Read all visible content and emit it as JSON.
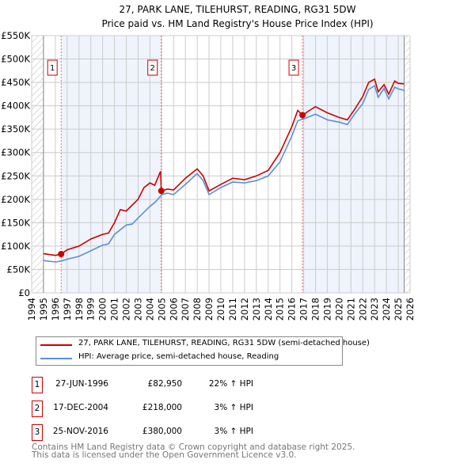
{
  "chart_data": {
    "type": "line",
    "title": "27, PARK LANE, TILEHURST, READING, RG31 5DW",
    "subtitle": "Price paid vs. HM Land Registry's House Price Index (HPI)",
    "xlim": [
      1994,
      2026
    ],
    "ylim": [
      0,
      550000
    ],
    "x_ticks": [
      "1994",
      "1995",
      "1996",
      "1997",
      "1998",
      "1999",
      "2000",
      "2001",
      "2002",
      "2003",
      "2004",
      "2005",
      "2006",
      "2007",
      "2008",
      "2009",
      "2010",
      "2011",
      "2012",
      "2013",
      "2014",
      "2015",
      "2016",
      "2017",
      "2018",
      "2019",
      "2020",
      "2021",
      "2022",
      "2023",
      "2024",
      "2025",
      "2026"
    ],
    "y_ticks": [
      "£0",
      "£50K",
      "£100K",
      "£150K",
      "£200K",
      "£250K",
      "£300K",
      "£350K",
      "£400K",
      "£450K",
      "£500K",
      "£550K"
    ],
    "grid": true,
    "series": [
      {
        "name": "27, PARK LANE, TILEHURST, READING, RG31 5DW (semi-detached house)",
        "color": "#cc0000",
        "x": [
          1995,
          1996,
          1996.49,
          1997,
          1998,
          1999,
          2000,
          2000.5,
          2001,
          2001.5,
          2002,
          2003,
          2003.5,
          2004,
          2004.4,
          2004.9,
          2004.96,
          2005.5,
          2006,
          2007,
          2008,
          2008.5,
          2009,
          2010,
          2011,
          2012,
          2013,
          2014,
          2015,
          2016,
          2016.5,
          2016.9,
          2017.5,
          2018,
          2019,
          2020,
          2020.7,
          2021.3,
          2022,
          2022.5,
          2023,
          2023.3,
          2023.8,
          2024.2,
          2024.7,
          2025,
          2025.5
        ],
        "y": [
          84000,
          80000,
          82950,
          92000,
          100000,
          115000,
          125000,
          128000,
          150000,
          178000,
          175000,
          200000,
          225000,
          235000,
          230000,
          260000,
          218000,
          222000,
          220000,
          245000,
          265000,
          250000,
          218000,
          232000,
          245000,
          242000,
          250000,
          262000,
          300000,
          355000,
          390000,
          380000,
          390000,
          398000,
          385000,
          375000,
          370000,
          392000,
          420000,
          450000,
          457000,
          430000,
          445000,
          425000,
          453000,
          448000,
          447000
        ]
      },
      {
        "name": "HPI: Average price, semi-detached house, Reading",
        "color": "#5b8fd4",
        "x": [
          1995,
          1996,
          1996.5,
          1997,
          1998,
          1999,
          2000,
          2000.5,
          2001,
          2002,
          2002.5,
          2003,
          2004,
          2004.5,
          2005,
          2005.5,
          2006,
          2007,
          2008,
          2008.5,
          2009,
          2010,
          2011,
          2012,
          2013,
          2014,
          2015,
          2016,
          2016.5,
          2017,
          2018,
          2019,
          2020,
          2020.7,
          2021.3,
          2022,
          2022.5,
          2023,
          2023.3,
          2023.8,
          2024.2,
          2024.7,
          2025,
          2025.5
        ],
        "y": [
          69000,
          66000,
          68000,
          72000,
          78000,
          90000,
          102000,
          105000,
          125000,
          145000,
          147000,
          160000,
          185000,
          195000,
          210000,
          213000,
          210000,
          232000,
          255000,
          240000,
          210000,
          225000,
          237000,
          235000,
          240000,
          250000,
          280000,
          335000,
          368000,
          372000,
          382000,
          370000,
          365000,
          360000,
          382000,
          405000,
          435000,
          443000,
          418000,
          437000,
          415000,
          440000,
          436000,
          433000
        ]
      }
    ],
    "sales": [
      {
        "label": "1",
        "x": 1996.49,
        "price": 82950,
        "date": "27-JUN-1996",
        "price_text": "£82,950",
        "hpi": "22% ↑ HPI"
      },
      {
        "label": "2",
        "x": 2004.96,
        "price": 218000,
        "date": "17-DEC-2004",
        "price_text": "£218,000",
        "hpi": "3% ↑ HPI"
      },
      {
        "label": "3",
        "x": 2016.9,
        "price": 380000,
        "date": "25-NOV-2016",
        "price_text": "£380,000",
        "hpi": "3% ↑ HPI"
      }
    ],
    "data_range": [
      1995,
      2025.5
    ],
    "legend_position": "below"
  },
  "footer": {
    "line1": "Contains HM Land Registry data © Crown copyright and database right 2025.",
    "line2": "This data is licensed under the Open Government Licence v3.0."
  }
}
